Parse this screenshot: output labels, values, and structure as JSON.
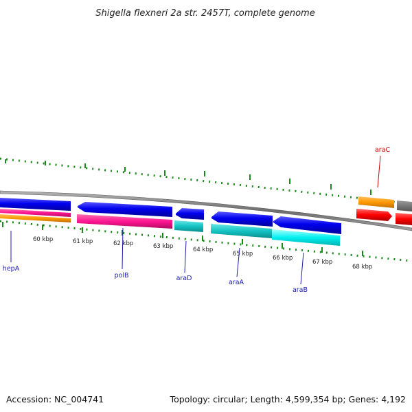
{
  "title": "Shigella flexneri 2a str. 2457T, complete genome",
  "footer": {
    "accession": "Accession: NC_004741",
    "summary": "Topology: circular; Length: 4,599,354 bp; Genes: 4,192"
  },
  "colors": {
    "backbone": "#777777",
    "tick": "#1a8a1a",
    "label_blue": "#1a1aaa",
    "label_red": "#cc0000"
  },
  "scale_labels": [
    "60 kbp",
    "61 kbp",
    "62 kbp",
    "63 kbp",
    "64 kbp",
    "65 kbp",
    "66 kbp",
    "67 kbp",
    "68 kbp"
  ],
  "gene_labels": [
    {
      "name": "hepA",
      "color": "#1a1aaa"
    },
    {
      "name": "polB",
      "color": "#1a1aaa"
    },
    {
      "name": "araD",
      "color": "#1a1aaa"
    },
    {
      "name": "araA",
      "color": "#1a1aaa"
    },
    {
      "name": "araB",
      "color": "#1a1aaa"
    },
    {
      "name": "araC",
      "color": "#cc0000"
    }
  ]
}
